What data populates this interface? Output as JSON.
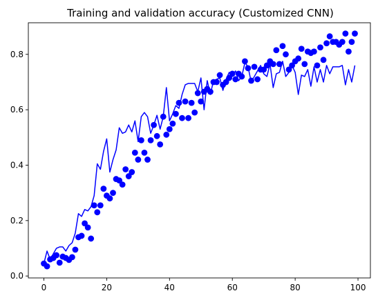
{
  "chart_data": {
    "type": "scatter",
    "title": "Training and validation accuracy (Customized CNN)",
    "xlabel": "",
    "ylabel": "",
    "xlim": [
      -4.95,
      103.95
    ],
    "ylim": [
      -0.007,
      0.914
    ],
    "x_ticks": [
      0,
      20,
      40,
      60,
      80,
      100
    ],
    "y_ticks": [
      0.0,
      0.2,
      0.4,
      0.6,
      0.8
    ],
    "grid": false,
    "series": [
      {
        "kind": "points",
        "color": "#0000ff",
        "x": [
          0,
          1,
          2,
          3,
          4,
          5,
          6,
          7,
          8,
          9,
          10,
          11,
          12,
          13,
          14,
          15,
          16,
          17,
          18,
          19,
          20,
          21,
          22,
          23,
          24,
          25,
          26,
          27,
          28,
          29,
          30,
          31,
          32,
          33,
          34,
          35,
          36,
          37,
          38,
          39,
          40,
          41,
          42,
          43,
          44,
          45,
          46,
          47,
          48,
          49,
          50,
          51,
          52,
          53,
          54,
          55,
          56,
          57,
          58,
          59,
          60,
          61,
          62,
          63,
          64,
          65,
          66,
          67,
          68,
          69,
          70,
          71,
          72,
          73,
          74,
          75,
          76,
          77,
          78,
          79,
          80,
          81,
          82,
          83,
          84,
          85,
          86,
          87,
          88,
          89,
          90,
          91,
          92,
          93,
          94,
          95,
          96,
          97,
          98,
          99
        ],
        "y": [
          0.045,
          0.035,
          0.06,
          0.065,
          0.075,
          0.048,
          0.07,
          0.065,
          0.058,
          0.068,
          0.095,
          0.14,
          0.145,
          0.19,
          0.175,
          0.135,
          0.255,
          0.23,
          0.255,
          0.315,
          0.29,
          0.28,
          0.3,
          0.35,
          0.345,
          0.33,
          0.385,
          0.36,
          0.375,
          0.445,
          0.42,
          0.49,
          0.445,
          0.42,
          0.49,
          0.545,
          0.505,
          0.475,
          0.575,
          0.51,
          0.53,
          0.55,
          0.585,
          0.625,
          0.57,
          0.63,
          0.57,
          0.625,
          0.59,
          0.66,
          0.63,
          0.665,
          0.675,
          0.665,
          0.7,
          0.7,
          0.725,
          0.69,
          0.7,
          0.715,
          0.73,
          0.71,
          0.73,
          0.72,
          0.775,
          0.75,
          0.705,
          0.755,
          0.71,
          0.745,
          0.745,
          0.76,
          0.775,
          0.765,
          0.815,
          0.765,
          0.83,
          0.8,
          0.745,
          0.76,
          0.775,
          0.785,
          0.82,
          0.765,
          0.81,
          0.805,
          0.81,
          0.76,
          0.825,
          0.78,
          0.84,
          0.865,
          0.845,
          0.845,
          0.835,
          0.845,
          0.875,
          0.81,
          0.845,
          0.875
        ]
      },
      {
        "kind": "line",
        "color": "#0000ff",
        "x": [
          0,
          1,
          2,
          3,
          4,
          5,
          6,
          7,
          8,
          9,
          10,
          11,
          12,
          13,
          14,
          15,
          16,
          17,
          18,
          19,
          20,
          21,
          22,
          23,
          24,
          25,
          26,
          27,
          28,
          29,
          30,
          31,
          32,
          33,
          34,
          35,
          36,
          37,
          38,
          39,
          40,
          41,
          42,
          43,
          44,
          45,
          46,
          47,
          48,
          49,
          50,
          51,
          52,
          53,
          54,
          55,
          56,
          57,
          58,
          59,
          60,
          61,
          62,
          63,
          64,
          65,
          66,
          67,
          68,
          69,
          70,
          71,
          72,
          73,
          74,
          75,
          76,
          77,
          78,
          79,
          80,
          81,
          82,
          83,
          84,
          85,
          86,
          87,
          88,
          89,
          90,
          91,
          92,
          93,
          94,
          95,
          96,
          97,
          98,
          99
        ],
        "y": [
          0.045,
          0.09,
          0.06,
          0.08,
          0.1,
          0.105,
          0.105,
          0.09,
          0.11,
          0.12,
          0.155,
          0.225,
          0.215,
          0.24,
          0.235,
          0.25,
          0.29,
          0.405,
          0.385,
          0.45,
          0.495,
          0.375,
          0.42,
          0.455,
          0.535,
          0.515,
          0.52,
          0.545,
          0.52,
          0.56,
          0.485,
          0.575,
          0.59,
          0.575,
          0.515,
          0.545,
          0.58,
          0.53,
          0.575,
          0.68,
          0.56,
          0.585,
          0.615,
          0.605,
          0.655,
          0.69,
          0.695,
          0.695,
          0.695,
          0.665,
          0.715,
          0.6,
          0.705,
          0.655,
          0.705,
          0.71,
          0.715,
          0.67,
          0.71,
          0.735,
          0.72,
          0.74,
          0.705,
          0.72,
          0.77,
          0.755,
          0.7,
          0.72,
          0.74,
          0.76,
          0.73,
          0.72,
          0.765,
          0.68,
          0.73,
          0.735,
          0.775,
          0.72,
          0.735,
          0.76,
          0.735,
          0.655,
          0.725,
          0.72,
          0.745,
          0.685,
          0.755,
          0.7,
          0.745,
          0.7,
          0.76,
          0.73,
          0.755,
          0.755,
          0.755,
          0.76,
          0.69,
          0.745,
          0.7,
          0.76
        ]
      }
    ]
  }
}
